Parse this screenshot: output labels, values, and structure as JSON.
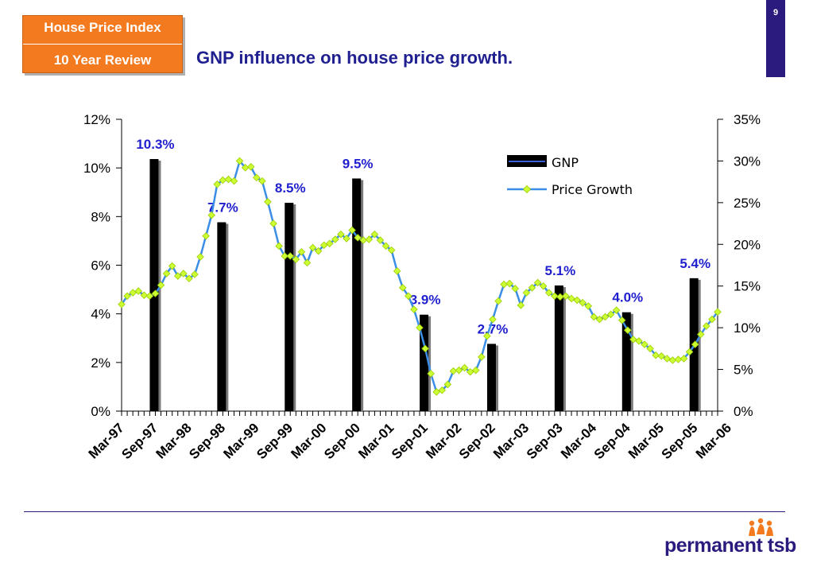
{
  "header": {
    "badge_line1": "House Price Index",
    "badge_line2": "10 Year Review",
    "title": "GNP influence on house price growth.",
    "page_number": "9"
  },
  "brand": {
    "logo_text": "permanent tsb",
    "accent_color": "#f47a20",
    "primary_color": "#2b1b7e"
  },
  "chart_data": {
    "type": "bar",
    "x_tick_labels": [
      "Mar-97",
      "Sep-97",
      "Mar-98",
      "Sep-98",
      "Mar-99",
      "Sep-99",
      "Mar-00",
      "Sep-00",
      "Mar-01",
      "Sep-01",
      "Mar-02",
      "Sep-02",
      "Mar-03",
      "Sep-03",
      "Mar-04",
      "Sep-04",
      "Mar-05",
      "Sep-05",
      "Mar-06"
    ],
    "y_left": {
      "ylim": [
        0,
        12
      ],
      "ticks": [
        0,
        2,
        4,
        6,
        8,
        10,
        12
      ],
      "tick_labels": [
        "0%",
        "2%",
        "4%",
        "6%",
        "8%",
        "10%",
        "12%"
      ]
    },
    "y_right": {
      "ylim": [
        0,
        35
      ],
      "ticks": [
        0,
        5,
        10,
        15,
        20,
        25,
        30,
        35
      ],
      "tick_labels": [
        "0%",
        "5%",
        "10%",
        "15%",
        "20%",
        "25%",
        "30%",
        "35%"
      ]
    },
    "legend": {
      "position": "top-right",
      "entries": [
        "GNP",
        "Price Growth"
      ]
    },
    "series": [
      {
        "name": "GNP",
        "type": "bar",
        "axis": "left",
        "color": "#000000",
        "points": [
          {
            "x": "Sep-97",
            "value": 10.3,
            "label": "10.3%"
          },
          {
            "x": "Sep-98",
            "value": 7.7,
            "label": "7.7%"
          },
          {
            "x": "Sep-99",
            "value": 8.5,
            "label": "8.5%"
          },
          {
            "x": "Sep-00",
            "value": 9.5,
            "label": "9.5%"
          },
          {
            "x": "Sep-01",
            "value": 3.9,
            "label": "3.9%"
          },
          {
            "x": "Sep-02",
            "value": 2.7,
            "label": "2.7%"
          },
          {
            "x": "Sep-03",
            "value": 5.1,
            "label": "5.1%"
          },
          {
            "x": "Sep-04",
            "value": 4.0,
            "label": "4.0%"
          },
          {
            "x": "Sep-05",
            "value": 5.4,
            "label": "5.4%"
          }
        ]
      },
      {
        "name": "Price Growth",
        "type": "line",
        "axis": "right",
        "line_color": "#3a8ee6",
        "marker_color": "#ccff33",
        "x_start": "Mar-97",
        "x_step_months": 1,
        "values": [
          12.8,
          13.8,
          14.2,
          14.4,
          13.9,
          13.8,
          14.1,
          15.1,
          16.5,
          17.4,
          16.2,
          16.5,
          15.9,
          16.4,
          18.5,
          21.0,
          23.5,
          27.2,
          27.7,
          27.8,
          27.6,
          30.0,
          29.2,
          29.3,
          28.0,
          27.6,
          25.1,
          22.5,
          19.8,
          18.6,
          18.6,
          18.2,
          19.1,
          17.8,
          19.6,
          19.2,
          19.9,
          20.1,
          20.6,
          21.2,
          20.7,
          21.7,
          20.8,
          20.5,
          20.6,
          21.2,
          20.5,
          19.8,
          19.3,
          16.8,
          14.8,
          13.8,
          12.2,
          10.0,
          7.5,
          4.5,
          2.3,
          2.5,
          3.2,
          4.8,
          4.9,
          5.2,
          4.7,
          4.9,
          6.5,
          9.0,
          11.0,
          13.2,
          15.2,
          15.3,
          14.7,
          12.7,
          14.2,
          14.8,
          15.4,
          15.0,
          14.2,
          13.8,
          13.7,
          13.8,
          13.5,
          13.3,
          13.0,
          12.6,
          11.3,
          11.0,
          11.3,
          11.6,
          12.1,
          10.9,
          9.7,
          8.6,
          8.4,
          8.0,
          7.5,
          6.7,
          6.6,
          6.3,
          6.1,
          6.2,
          6.3,
          7.1,
          8.0,
          9.2,
          10.2,
          11.0,
          11.9
        ]
      }
    ]
  }
}
